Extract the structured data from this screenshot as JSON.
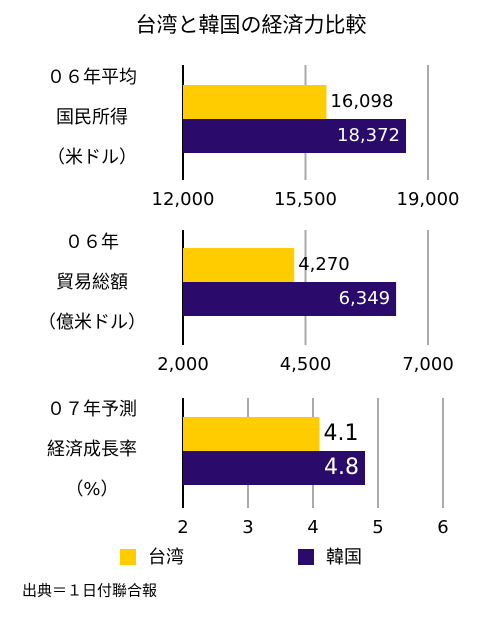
{
  "title": "台湾と韓国の経済力比較",
  "legend": [
    {
      "name": "台湾",
      "color": "#ffcc00"
    },
    {
      "name": "韓国",
      "color": "#2a0a6b"
    }
  ],
  "source": "出典＝１日付聯合報",
  "chart_data": [
    {
      "type": "bar",
      "label": [
        "０６年平均",
        "国民所得",
        "（米ドル）"
      ],
      "values": [
        16098,
        18372
      ],
      "value_labels": [
        "16,098",
        "18,372"
      ],
      "xlim": [
        12000,
        19000
      ],
      "xticks": [
        {
          "value": 12000,
          "label": "12,000"
        },
        {
          "value": 15500,
          "label": "15,500"
        },
        {
          "value": 19000,
          "label": "19,000"
        }
      ],
      "grid": true
    },
    {
      "type": "bar",
      "label": [
        "０６年",
        "貿易総額",
        "（億米ドル）"
      ],
      "values": [
        4270,
        6349
      ],
      "value_labels": [
        "4,270",
        "6,349"
      ],
      "xlim": [
        2000,
        7000
      ],
      "xticks": [
        {
          "value": 2000,
          "label": "2,000"
        },
        {
          "value": 4500,
          "label": "4,500"
        },
        {
          "value": 7000,
          "label": "7,000"
        }
      ],
      "grid": true
    },
    {
      "type": "bar",
      "label": [
        "０７年予測",
        "経済成長率",
        "（%）"
      ],
      "values": [
        4.1,
        4.8
      ],
      "xlim": [
        2,
        6
      ],
      "xticks": [
        2,
        3,
        4,
        5,
        6
      ],
      "grid": true
    }
  ]
}
